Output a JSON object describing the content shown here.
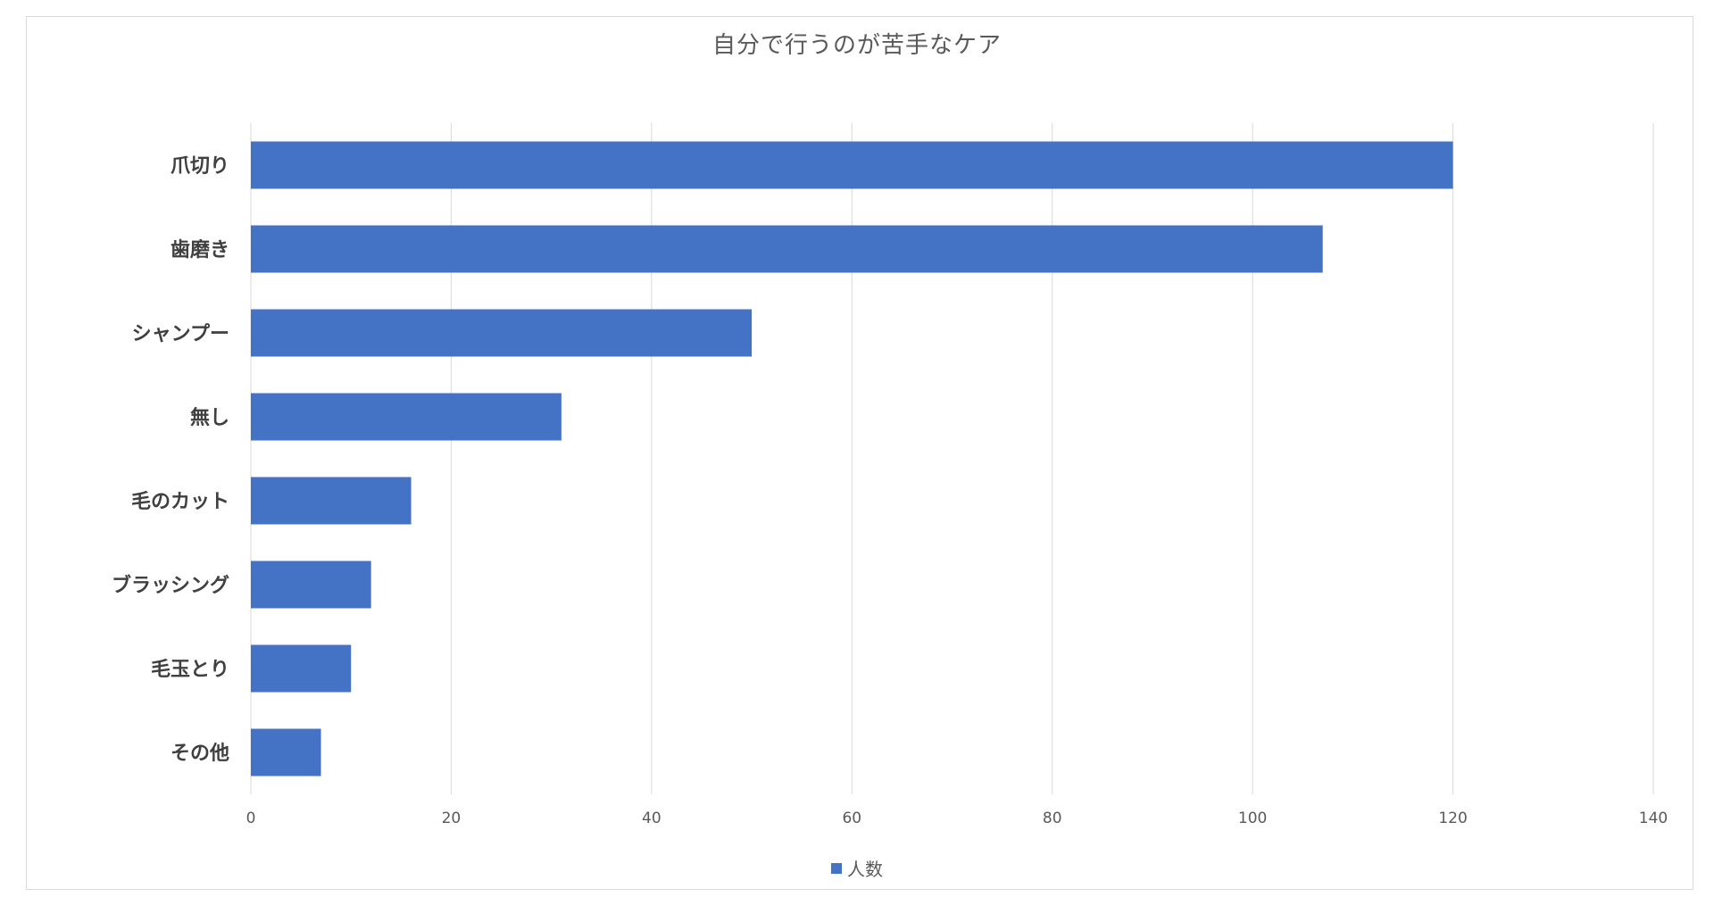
{
  "chart_data": {
    "type": "bar",
    "orientation": "horizontal",
    "title": "自分で行うのが苦手なケア",
    "categories": [
      "爪切り",
      "歯磨き",
      "シャンプー",
      "無し",
      "毛のカット",
      "ブラッシング",
      "毛玉とり",
      "その他"
    ],
    "series": [
      {
        "name": "人数",
        "color": "#4472c4",
        "values": [
          120,
          107,
          50,
          31,
          16,
          12,
          10,
          7
        ]
      }
    ],
    "xlim": [
      0,
      140
    ],
    "xticks": [
      0,
      20,
      40,
      60,
      80,
      100,
      120,
      140
    ],
    "grid": true,
    "legend": "bottom-center"
  }
}
